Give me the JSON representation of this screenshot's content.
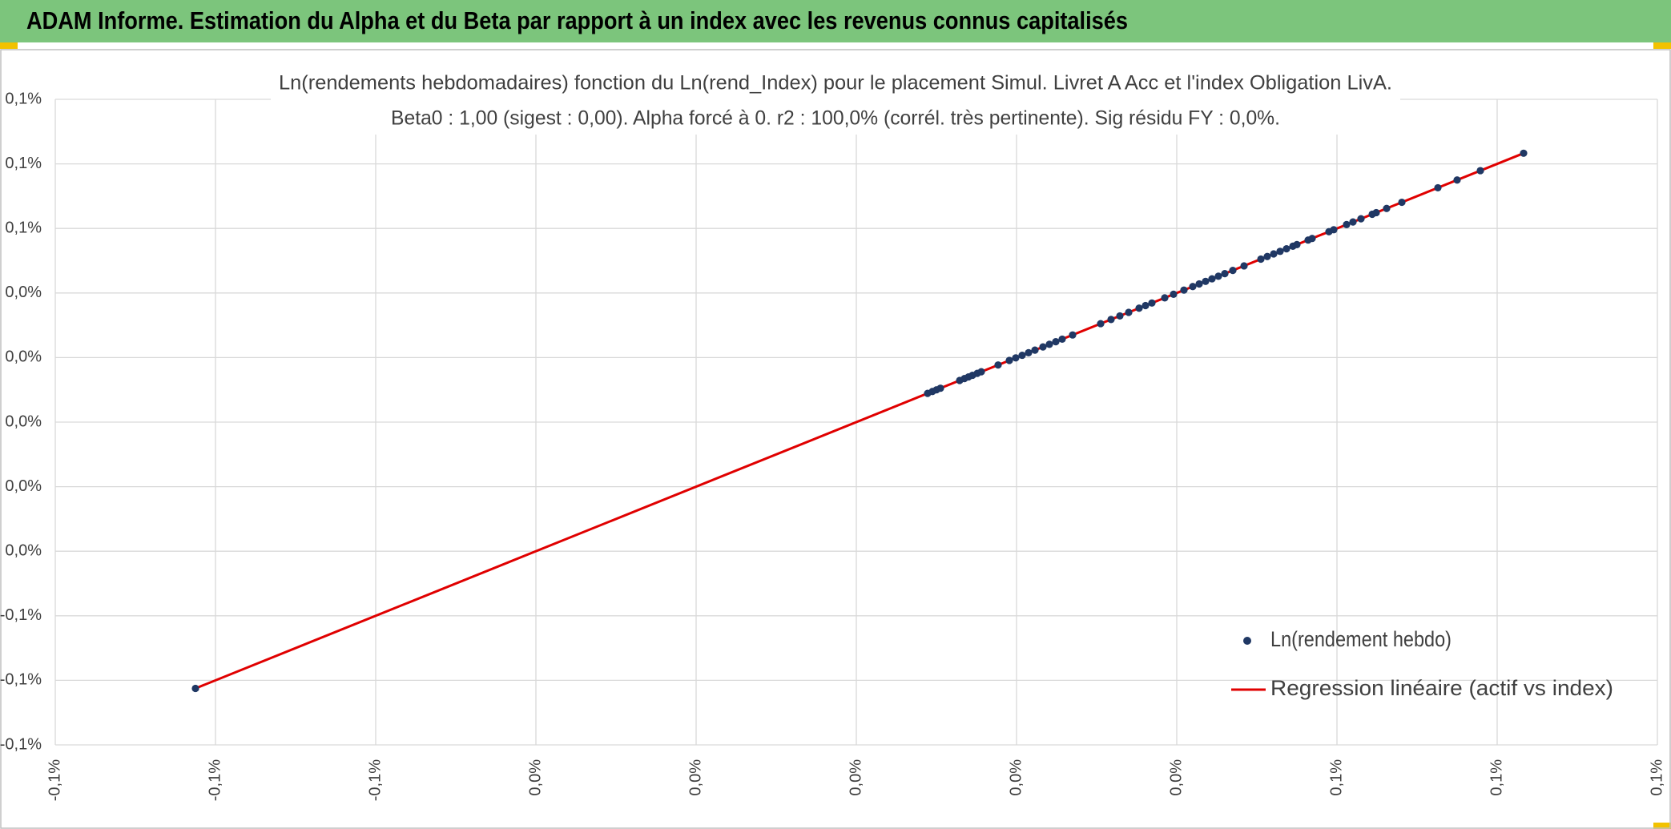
{
  "header": {
    "title": "ADAM Informe. Estimation du Alpha et du Beta par rapport à un index avec les revenus connus capitalisés"
  },
  "chart_data": {
    "type": "scatter",
    "title": "Ln(rendements hebdomadaires) fonction du Ln(rend_Index) pour le placement Simul. Livret A Acc et l'index Obligation LivA.",
    "subtitle": "Beta0 : 1,00 (sigest : 0,00). Alpha forcé à 0. r2 : 100,0% (corrél. très pertinente). Sig résidu FY : 0,0%.",
    "xlim": [
      -0.001,
      0.001
    ],
    "ylim": [
      -0.001,
      0.001
    ],
    "xticks": [
      {
        "value": -0.001,
        "label": "-0,1%"
      },
      {
        "value": -0.0008,
        "label": "-0,1%"
      },
      {
        "value": -0.0006,
        "label": "-0,1%"
      },
      {
        "value": -0.0004,
        "label": "0,0%"
      },
      {
        "value": -0.0002,
        "label": "0,0%"
      },
      {
        "value": 0,
        "label": "0,0%"
      },
      {
        "value": 0.0002,
        "label": "0,0%"
      },
      {
        "value": 0.0004,
        "label": "0,0%"
      },
      {
        "value": 0.0006,
        "label": "0,1%"
      },
      {
        "value": 0.0008,
        "label": "0,1%"
      },
      {
        "value": 0.001,
        "label": "0,1%"
      }
    ],
    "yticks": [
      {
        "value": -0.001,
        "label": "-0,1%"
      },
      {
        "value": -0.0008,
        "label": "-0,1%"
      },
      {
        "value": -0.0006,
        "label": "-0,1%"
      },
      {
        "value": -0.0004,
        "label": "0,0%"
      },
      {
        "value": -0.0002,
        "label": "0,0%"
      },
      {
        "value": 0,
        "label": "0,0%"
      },
      {
        "value": 0.0002,
        "label": "0,0%"
      },
      {
        "value": 0.0004,
        "label": "0,0%"
      },
      {
        "value": 0.0006,
        "label": "0,1%"
      },
      {
        "value": 0.0008,
        "label": "0,1%"
      },
      {
        "value": 0.001,
        "label": "0,1%"
      }
    ],
    "grid": true,
    "legend": "bottom-right",
    "series": [
      {
        "name": "Ln(rendement hebdo)",
        "type": "scatter",
        "color": "#203864",
        "x": [
          -0.000825,
          8.9e-05,
          9.5e-05,
          0.0001,
          0.000105,
          0.000129,
          0.000135,
          0.00014,
          0.000145,
          0.000151,
          0.000156,
          0.000177,
          0.000191,
          0.000199,
          0.000207,
          0.000215,
          0.000223,
          0.000233,
          0.000241,
          0.000249,
          0.000257,
          0.00027,
          0.000305,
          0.000318,
          0.000329,
          0.00034,
          0.000353,
          0.000361,
          0.000369,
          0.000385,
          0.000396,
          0.000409,
          0.00042,
          0.000428,
          0.000436,
          0.000444,
          0.000452,
          0.00046,
          0.00047,
          0.000484,
          0.000505,
          0.000513,
          0.000521,
          0.000529,
          0.000537,
          0.000545,
          0.00055,
          0.000564,
          0.000569,
          0.00059,
          0.000596,
          0.000612,
          0.00062,
          0.00063,
          0.000644,
          0.000649,
          0.000662,
          0.000681,
          0.000726,
          0.00075,
          0.000779,
          0.000833
        ],
        "y": [
          -0.000825,
          8.9e-05,
          9.5e-05,
          0.0001,
          0.000105,
          0.000129,
          0.000135,
          0.00014,
          0.000145,
          0.000151,
          0.000156,
          0.000177,
          0.000191,
          0.000199,
          0.000207,
          0.000215,
          0.000223,
          0.000233,
          0.000241,
          0.000249,
          0.000257,
          0.00027,
          0.000305,
          0.000318,
          0.000329,
          0.00034,
          0.000353,
          0.000361,
          0.000369,
          0.000385,
          0.000396,
          0.000409,
          0.00042,
          0.000428,
          0.000436,
          0.000444,
          0.000452,
          0.00046,
          0.00047,
          0.000484,
          0.000505,
          0.000513,
          0.000521,
          0.000529,
          0.000537,
          0.000545,
          0.00055,
          0.000564,
          0.000569,
          0.00059,
          0.000596,
          0.000612,
          0.00062,
          0.00063,
          0.000644,
          0.000649,
          0.000662,
          0.000681,
          0.000726,
          0.00075,
          0.000779,
          0.000833
        ]
      },
      {
        "name": "Regression linéaire (actif vs index)",
        "type": "line",
        "color": "#e00000",
        "x": [
          -0.000825,
          0.000833
        ],
        "y": [
          -0.000825,
          0.000833
        ]
      }
    ]
  }
}
